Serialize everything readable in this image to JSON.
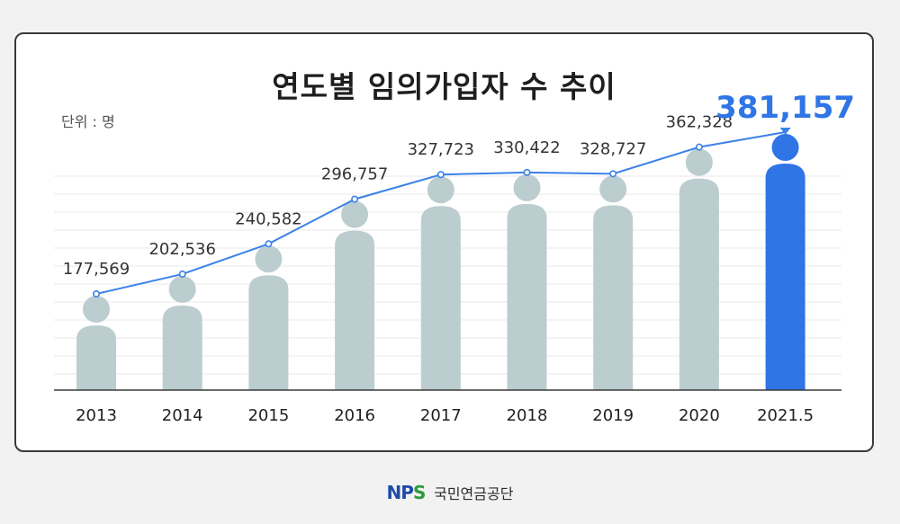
{
  "title": "연도별 임의가입자 수 추이",
  "unit_label": "단위 : 명",
  "colors": {
    "bar": "#bccdcf",
    "bar_highlight": "#2f75e6",
    "line": "#3b82e8",
    "grid": "#e8e8e8",
    "axis": "#3a3a3a",
    "label": "#333333",
    "highlight_label": "#2f75e6"
  },
  "chart_data": {
    "type": "bar",
    "overlay": "line",
    "title": "연도별 임의가입자 수 추이",
    "ylabel": "",
    "xlabel": "",
    "ylim": [
      0,
      400000
    ],
    "grid": true,
    "categories": [
      "2013",
      "2014",
      "2015",
      "2016",
      "2017",
      "2018",
      "2019",
      "2020",
      "2021.5"
    ],
    "labels": [
      "177,569",
      "202,536",
      "240,582",
      "296,757",
      "327,723",
      "330,422",
      "328,727",
      "362,328",
      "381,157"
    ],
    "values": [
      177569,
      202536,
      240582,
      296757,
      327723,
      330422,
      328727,
      362328,
      381157
    ],
    "highlight_index": 8
  },
  "footer": {
    "logo_n": "N",
    "logo_p": "P",
    "logo_s": "S",
    "org_name": "국민연금공단"
  }
}
